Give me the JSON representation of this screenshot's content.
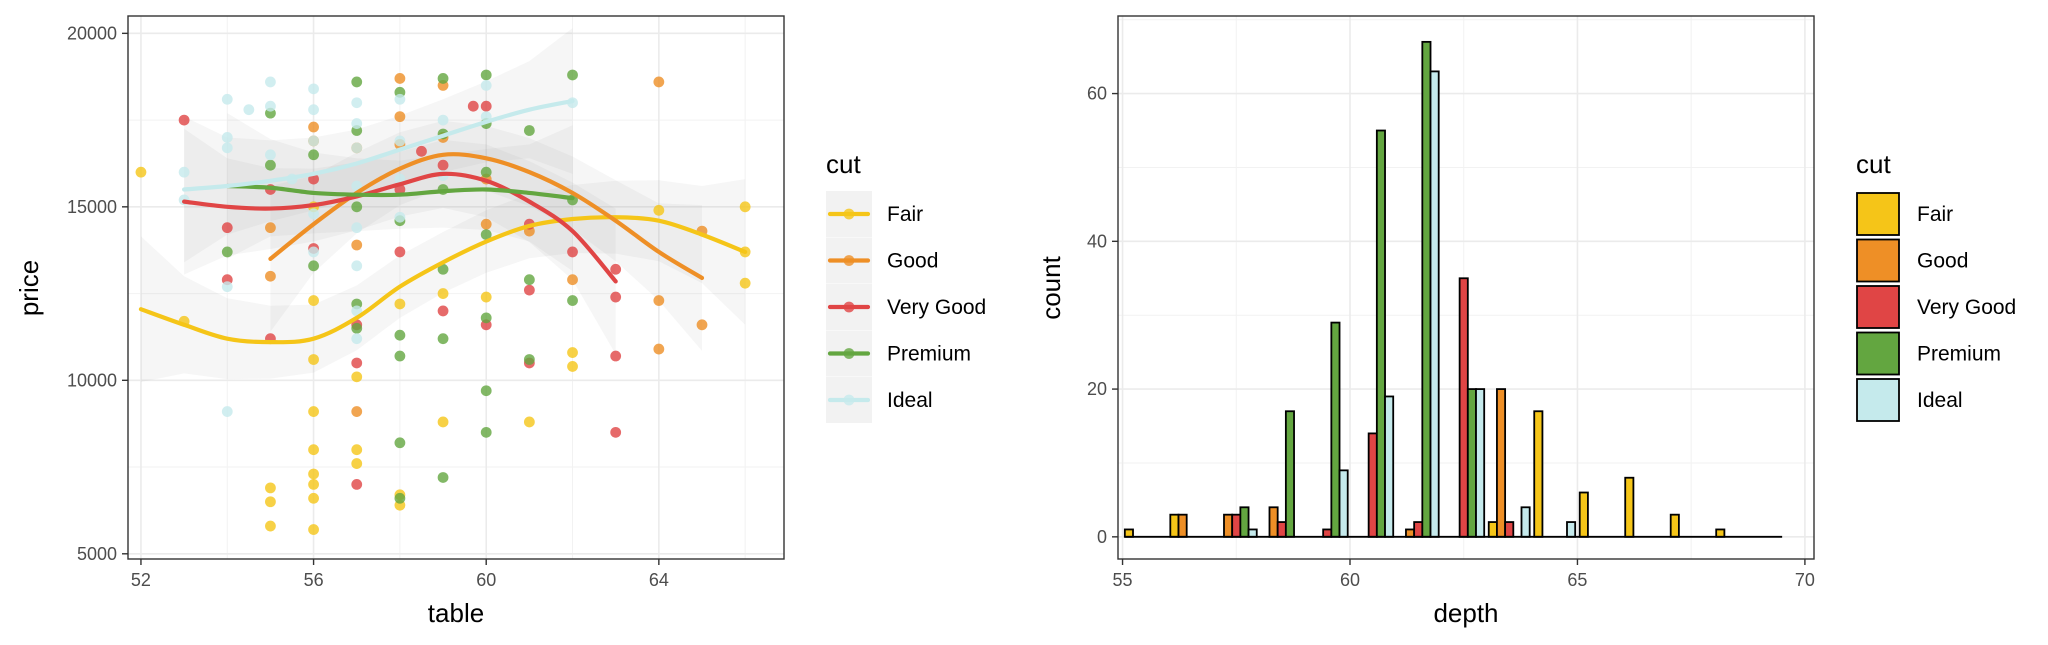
{
  "colors": {
    "Fair": "#F5C518",
    "Good": "#EE8F26",
    "Very Good": "#E04545",
    "Premium": "#63A640",
    "Ideal": "#C5EAEC"
  },
  "chart_data": [
    {
      "type": "scatter",
      "xlabel": "table",
      "ylabel": "price",
      "xlim": [
        51.7,
        66.9
      ],
      "ylim": [
        4850,
        20500
      ],
      "xticks": [
        "52",
        "56",
        "60",
        "64"
      ],
      "yticks": [
        "5000",
        "10000",
        "15000",
        "20000"
      ],
      "grid": true,
      "legend": {
        "title": "cut",
        "position": "right",
        "entries": [
          "Fair",
          "Good",
          "Very Good",
          "Premium",
          "Ideal"
        ]
      },
      "series": [
        {
          "name": "Fair",
          "points": [
            [
              52,
              16000
            ],
            [
              53,
              11700
            ],
            [
              55,
              6900
            ],
            [
              55,
              6500
            ],
            [
              55,
              5800
            ],
            [
              56,
              15000
            ],
            [
              56,
              12300
            ],
            [
              56,
              10600
            ],
            [
              56,
              9100
            ],
            [
              56,
              8000
            ],
            [
              56,
              7300
            ],
            [
              56,
              7000
            ],
            [
              56,
              6600
            ],
            [
              56,
              5700
            ],
            [
              57,
              10100
            ],
            [
              57,
              8000
            ],
            [
              57,
              7600
            ],
            [
              58,
              6700
            ],
            [
              58,
              6400
            ],
            [
              58,
              12200
            ],
            [
              59,
              12500
            ],
            [
              59,
              8800
            ],
            [
              60,
              12400
            ],
            [
              61,
              8800
            ],
            [
              62,
              10800
            ],
            [
              62,
              10400
            ],
            [
              64,
              14900
            ],
            [
              66,
              15000
            ],
            [
              66,
              12800
            ],
            [
              66,
              13700
            ]
          ],
          "smooth": [
            [
              52,
              12050
            ],
            [
              53,
              11600
            ],
            [
              54,
              11200
            ],
            [
              55,
              11100
            ],
            [
              56,
              11200
            ],
            [
              57,
              11800
            ],
            [
              58,
              12700
            ],
            [
              59,
              13400
            ],
            [
              60,
              14000
            ],
            [
              61,
              14450
            ],
            [
              62,
              14650
            ],
            [
              63,
              14700
            ],
            [
              64,
              14600
            ],
            [
              65,
              14200
            ],
            [
              66,
              13700
            ]
          ]
        },
        {
          "name": "Good",
          "points": [
            [
              55,
              13000
            ],
            [
              55,
              14400
            ],
            [
              56,
              17300
            ],
            [
              56,
              16900
            ],
            [
              57,
              16700
            ],
            [
              57,
              9100
            ],
            [
              57,
              13900
            ],
            [
              58,
              18700
            ],
            [
              58,
              17600
            ],
            [
              58,
              16800
            ],
            [
              59,
              18500
            ],
            [
              59,
              17000
            ],
            [
              60,
              15800
            ],
            [
              60,
              14500
            ],
            [
              61,
              14300
            ],
            [
              62,
              12900
            ],
            [
              64,
              18600
            ],
            [
              64,
              12300
            ],
            [
              64,
              10900
            ],
            [
              65,
              14300
            ],
            [
              65,
              11600
            ]
          ],
          "smooth": [
            [
              55,
              13500
            ],
            [
              56,
              14500
            ],
            [
              57,
              15400
            ],
            [
              58,
              16100
            ],
            [
              59,
              16500
            ],
            [
              60,
              16400
            ],
            [
              61,
              16000
            ],
            [
              62,
              15400
            ],
            [
              63,
              14600
            ],
            [
              64,
              13700
            ],
            [
              65,
              12950
            ]
          ]
        },
        {
          "name": "Very Good",
          "points": [
            [
              53,
              17500
            ],
            [
              54,
              14400
            ],
            [
              54,
              12900
            ],
            [
              55,
              15500
            ],
            [
              55,
              11200
            ],
            [
              56,
              15800
            ],
            [
              56,
              13800
            ],
            [
              57,
              11600
            ],
            [
              57,
              10500
            ],
            [
              57,
              7000
            ],
            [
              58,
              15500
            ],
            [
              58,
              13700
            ],
            [
              59,
              16200
            ],
            [
              59,
              12000
            ],
            [
              60,
              17900
            ],
            [
              60,
              11600
            ],
            [
              61,
              14500
            ],
            [
              61,
              12600
            ],
            [
              61,
              10500
            ],
            [
              62,
              13700
            ],
            [
              63,
              13200
            ],
            [
              63,
              12400
            ],
            [
              63,
              10700
            ],
            [
              63,
              8500
            ],
            [
              58.5,
              16600
            ],
            [
              59.7,
              17900
            ]
          ],
          "smooth": [
            [
              53,
              15150
            ],
            [
              54,
              15000
            ],
            [
              55,
              14950
            ],
            [
              56,
              15050
            ],
            [
              57,
              15300
            ],
            [
              58,
              15650
            ],
            [
              59,
              15950
            ],
            [
              60,
              15750
            ],
            [
              61,
              15150
            ],
            [
              62,
              14300
            ],
            [
              63,
              12850
            ]
          ]
        },
        {
          "name": "Premium",
          "points": [
            [
              54,
              13700
            ],
            [
              55,
              17700
            ],
            [
              55,
              16200
            ],
            [
              56,
              16500
            ],
            [
              56,
              13300
            ],
            [
              57,
              18600
            ],
            [
              57,
              17200
            ],
            [
              57,
              15000
            ],
            [
              57,
              11500
            ],
            [
              58,
              18300
            ],
            [
              58,
              14600
            ],
            [
              58,
              11300
            ],
            [
              58,
              10700
            ],
            [
              58,
              8200
            ],
            [
              59,
              18700
            ],
            [
              59,
              17100
            ],
            [
              59,
              15500
            ],
            [
              59,
              13200
            ],
            [
              59,
              11200
            ],
            [
              59,
              7200
            ],
            [
              60,
              18800
            ],
            [
              60,
              17400
            ],
            [
              60,
              16000
            ],
            [
              60,
              14200
            ],
            [
              60,
              11800
            ],
            [
              60,
              9700
            ],
            [
              60,
              8500
            ],
            [
              61,
              17200
            ],
            [
              61,
              12900
            ],
            [
              61,
              10600
            ],
            [
              62,
              18800
            ],
            [
              62,
              15200
            ],
            [
              62,
              12300
            ],
            [
              58,
              6600
            ],
            [
              57,
              12200
            ]
          ],
          "smooth": [
            [
              54,
              15600
            ],
            [
              55,
              15550
            ],
            [
              56,
              15400
            ],
            [
              57,
              15350
            ],
            [
              58,
              15350
            ],
            [
              59,
              15450
            ],
            [
              60,
              15500
            ],
            [
              61,
              15400
            ],
            [
              62,
              15250
            ]
          ]
        },
        {
          "name": "Ideal",
          "points": [
            [
              53,
              16000
            ],
            [
              53,
              15200
            ],
            [
              54,
              18100
            ],
            [
              54,
              17000
            ],
            [
              54,
              16700
            ],
            [
              54,
              12700
            ],
            [
              54,
              9100
            ],
            [
              55,
              18600
            ],
            [
              55,
              17900
            ],
            [
              55,
              16500
            ],
            [
              56,
              18400
            ],
            [
              56,
              17800
            ],
            [
              56,
              16900
            ],
            [
              56,
              14800
            ],
            [
              56,
              13700
            ],
            [
              57,
              18000
            ],
            [
              57,
              17400
            ],
            [
              57,
              16700
            ],
            [
              57,
              15600
            ],
            [
              57,
              14400
            ],
            [
              57,
              13300
            ],
            [
              57,
              12000
            ],
            [
              57,
              11200
            ],
            [
              58,
              18100
            ],
            [
              58,
              16900
            ],
            [
              58,
              15800
            ],
            [
              58,
              14700
            ],
            [
              59,
              17500
            ],
            [
              59,
              15900
            ],
            [
              60,
              18500
            ],
            [
              60,
              17600
            ],
            [
              62,
              18000
            ],
            [
              55.5,
              15800
            ],
            [
              54.5,
              17800
            ]
          ],
          "smooth": [
            [
              53,
              15500
            ],
            [
              54,
              15600
            ],
            [
              55,
              15750
            ],
            [
              56,
              15950
            ],
            [
              57,
              16250
            ],
            [
              58,
              16650
            ],
            [
              59,
              17050
            ],
            [
              60,
              17450
            ],
            [
              61,
              17800
            ],
            [
              62,
              18050
            ]
          ]
        }
      ]
    },
    {
      "type": "bar",
      "xlabel": "depth",
      "ylabel": "count",
      "xlim": [
        54.9,
        70.2
      ],
      "ylim": [
        -3,
        70.5
      ],
      "xticks": [
        "55",
        "60",
        "65",
        "70"
      ],
      "yticks": [
        "0",
        "20",
        "40",
        "60"
      ],
      "grid": true,
      "bin_width": 1,
      "bin_centers": [
        55.5,
        56.5,
        57.5,
        58.5,
        59.5,
        60.5,
        61.5,
        62.5,
        63.5,
        64.5,
        65.5,
        66.5,
        67.5,
        68.5,
        69.5
      ],
      "baseline_range": [
        55.5,
        69.5
      ],
      "legend": {
        "title": "cut",
        "position": "right",
        "entries": [
          "Fair",
          "Good",
          "Very Good",
          "Premium",
          "Ideal"
        ]
      },
      "series": [
        {
          "name": "Fair",
          "values": [
            1,
            3,
            0,
            0,
            0,
            0,
            0,
            0,
            2,
            17,
            6,
            8,
            3,
            1,
            0
          ]
        },
        {
          "name": "Good",
          "values": [
            0,
            3,
            3,
            4,
            0,
            0,
            1,
            0,
            20,
            0,
            0,
            0,
            0,
            0,
            0
          ]
        },
        {
          "name": "Very Good",
          "values": [
            0,
            0,
            3,
            2,
            1,
            14,
            2,
            35,
            2,
            0,
            0,
            0,
            0,
            0,
            0
          ]
        },
        {
          "name": "Premium",
          "values": [
            0,
            0,
            4,
            17,
            29,
            55,
            67,
            20,
            0,
            0,
            0,
            0,
            0,
            0,
            0
          ]
        },
        {
          "name": "Ideal",
          "values": [
            0,
            0,
            1,
            0,
            9,
            19,
            63,
            20,
            4,
            2,
            0,
            0,
            0,
            0,
            0
          ]
        }
      ]
    }
  ]
}
